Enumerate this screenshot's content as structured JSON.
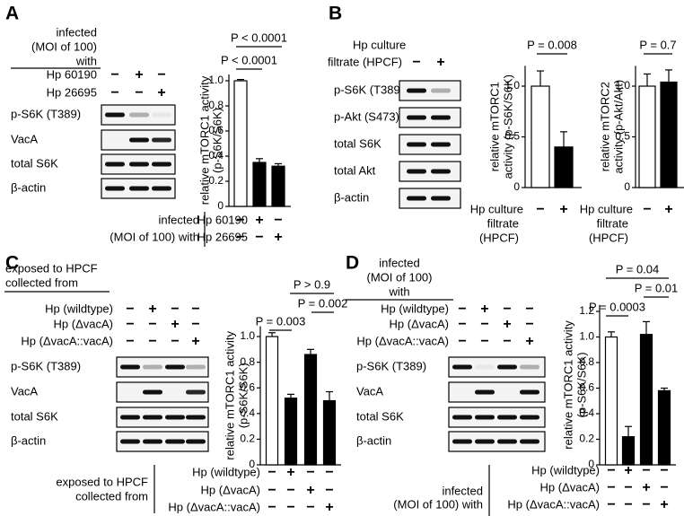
{
  "panels": [
    {
      "letter": "A",
      "header": [
        "infected",
        "(MOI of 100)",
        "with"
      ],
      "conditions": [
        {
          "label": "Hp 60190",
          "signs": [
            "−",
            "+",
            "−"
          ]
        },
        {
          "label": "Hp 26695",
          "signs": [
            "−",
            "−",
            "+"
          ]
        }
      ],
      "blots": [
        "p-S6K (T389)",
        "VacA",
        "total S6K",
        "β-actin"
      ]
    },
    {
      "letter": "B",
      "header": [
        "Hp culture"
      ],
      "conditions": [
        {
          "label": "filtrate (HPCF)",
          "signs": [
            "−",
            "+"
          ]
        }
      ],
      "blots": [
        "p-S6K (T389)",
        "p-Akt (S473)",
        "total S6K",
        "total Akt",
        "β-actin"
      ]
    },
    {
      "letter": "C",
      "header": [
        "exposed to HPCF",
        "collected from"
      ],
      "conditions": [
        {
          "label": "Hp (wildtype)",
          "signs": [
            "−",
            "+",
            "−",
            "−"
          ]
        },
        {
          "label": "Hp (ΔvacA)",
          "signs": [
            "−",
            "−",
            "+",
            "−"
          ]
        },
        {
          "label": "Hp (ΔvacA::vacA)",
          "signs": [
            "−",
            "−",
            "−",
            "+"
          ]
        }
      ],
      "blots": [
        "p-S6K (T389)",
        "VacA",
        "total S6K",
        "β-actin"
      ]
    },
    {
      "letter": "D",
      "header": [
        "infected",
        "(MOI of 100)",
        "with"
      ],
      "conditions": [
        {
          "label": "Hp (wildtype)",
          "signs": [
            "−",
            "+",
            "−",
            "−"
          ]
        },
        {
          "label": "Hp (ΔvacA)",
          "signs": [
            "−",
            "−",
            "+",
            "−"
          ]
        },
        {
          "label": "Hp (ΔvacA::vacA)",
          "signs": [
            "−",
            "−",
            "−",
            "+"
          ]
        }
      ],
      "blots": [
        "p-S6K (T389)",
        "VacA",
        "total S6K",
        "β-actin"
      ]
    }
  ],
  "chart_data": [
    {
      "type": "bar",
      "ylabel": [
        "relative mTORC1 activity",
        "(p-S6K/S6K)"
      ],
      "categories": [
        null,
        null,
        null
      ],
      "values": [
        1.0,
        0.35,
        0.32
      ],
      "errors": [
        0.01,
        0.03,
        0.02
      ],
      "colors": [
        "#ffffff",
        "#000000",
        "#000000"
      ],
      "ylim": [
        0,
        1.05
      ],
      "yticks": [
        0,
        0.2,
        0.4,
        0.6,
        0.8,
        {
          "value": 1,
          "label": "1.0"
        }
      ],
      "annotations": [
        "P < 0.0001",
        "P < 0.0001"
      ],
      "condition_header": [
        "infected",
        "(MOI of 100) with"
      ],
      "conditions": [
        {
          "label": "Hp 60190",
          "signs": [
            "−",
            "+",
            "−"
          ]
        },
        {
          "label": "Hp 26695",
          "signs": [
            "−",
            "−",
            "+"
          ]
        }
      ]
    },
    {
      "type": "bar",
      "ylabel": [
        "relative mTORC1",
        "activity (p-S6K/S6K)"
      ],
      "categories": [
        null,
        null
      ],
      "values": [
        1.0,
        0.4
      ],
      "errors": [
        0.15,
        0.15
      ],
      "colors": [
        "#ffffff",
        "#000000"
      ],
      "ylim": [
        0,
        1.2
      ],
      "yticks": [
        0,
        0.5,
        {
          "value": 1,
          "label": "1.0"
        }
      ],
      "annotations": [
        "P = 0.008"
      ],
      "condition_header": [
        "filtrate",
        "(HPCF)"
      ],
      "conditions": [
        {
          "label": "Hp culture",
          "signs": [
            "−",
            "+"
          ]
        }
      ]
    },
    {
      "type": "bar",
      "ylabel": [
        "relative mTORC2",
        "activity (p-Akt/Akt)"
      ],
      "categories": [
        null,
        null
      ],
      "values": [
        1.0,
        1.04
      ],
      "errors": [
        0.12,
        0.12
      ],
      "colors": [
        "#ffffff",
        "#000000"
      ],
      "ylim": [
        0,
        1.2
      ],
      "yticks": [
        0,
        0.5,
        {
          "value": 1,
          "label": "1.0"
        }
      ],
      "annotations": [
        "P = 0.7"
      ],
      "condition_header": [
        "filtrate",
        "(HPCF)"
      ],
      "conditions": [
        {
          "label": "Hp culture",
          "signs": [
            "−",
            "+"
          ]
        }
      ]
    },
    {
      "type": "bar",
      "ylabel": [
        "relative mTORC1 activity",
        "(p-S6K/S6K)"
      ],
      "categories": [
        null,
        null,
        null,
        null
      ],
      "values": [
        1.0,
        0.52,
        0.86,
        0.5
      ],
      "errors": [
        0.03,
        0.03,
        0.04,
        0.07
      ],
      "colors": [
        "#ffffff",
        "#000000",
        "#000000",
        "#000000"
      ],
      "ylim": [
        0,
        1.08
      ],
      "yticks": [
        0,
        0.2,
        0.4,
        0.6,
        0.8,
        {
          "value": 1,
          "label": "1.0"
        }
      ],
      "annotations": [
        "P > 0.9",
        "P = 0.002",
        "P = 0.003"
      ],
      "condition_header": [
        "exposed to HPCF",
        "collected from"
      ],
      "conditions": [
        {
          "label": "Hp (wildtype)",
          "signs": [
            "−",
            "+",
            "−",
            "−"
          ]
        },
        {
          "label": "Hp (ΔvacA)",
          "signs": [
            "−",
            "−",
            "+",
            "−"
          ]
        },
        {
          "label": "Hp (ΔvacA::vacA)",
          "signs": [
            "−",
            "−",
            "−",
            "+"
          ]
        }
      ]
    },
    {
      "type": "bar",
      "ylabel": [
        "relative mTORC1 activity",
        "(p-S6K/S6K)"
      ],
      "categories": [
        null,
        null,
        null,
        null
      ],
      "values": [
        1.0,
        0.22,
        1.02,
        0.58
      ],
      "errors": [
        0.04,
        0.08,
        0.1,
        0.02
      ],
      "colors": [
        "#ffffff",
        "#000000",
        "#000000",
        "#000000"
      ],
      "ylim": [
        0,
        1.25
      ],
      "yticks": [
        0,
        0.2,
        0.4,
        0.6,
        0.8,
        {
          "value": 1,
          "label": "1.0"
        },
        1.2
      ],
      "annotations": [
        "P = 0.04",
        "P = 0.01",
        "P = 0.0003"
      ],
      "condition_header": [
        "infected",
        "(MOI of 100) with"
      ],
      "conditions": [
        {
          "label": "Hp (wildtype)",
          "signs": [
            "−",
            "+",
            "−",
            "−"
          ]
        },
        {
          "label": "Hp (ΔvacA)",
          "signs": [
            "−",
            "−",
            "+",
            "−"
          ]
        },
        {
          "label": "Hp (ΔvacA::vacA)",
          "signs": [
            "−",
            "−",
            "−",
            "+"
          ]
        }
      ]
    }
  ]
}
